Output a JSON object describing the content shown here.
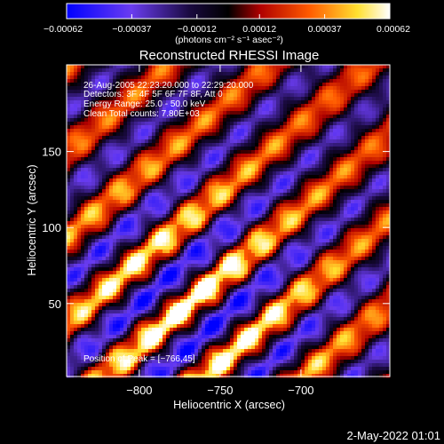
{
  "chart_data": {
    "type": "heatmap",
    "title": "Reconstructed RHESSI Image",
    "xlabel": "Heliocentric X (arcsec)",
    "ylabel": "Heliocentric Y (arcsec)",
    "x_range": [
      -845,
      -645
    ],
    "y_range": [
      2,
      207
    ],
    "x_ticks": [
      -800,
      -750,
      -700
    ],
    "x_tick_labels": [
      "−800",
      "−750",
      "−700"
    ],
    "y_ticks": [
      50,
      100,
      150
    ],
    "y_tick_labels": [
      "50",
      "100",
      "150"
    ],
    "colorbar": {
      "range": [
        -0.00062,
        0.00062
      ],
      "ticks": [
        -0.00062,
        -0.00037,
        -0.00012,
        0.00012,
        0.00037,
        0.00062
      ],
      "tick_labels": [
        "−0.00062",
        "−0.00037",
        "−0.00012",
        "0.00012",
        "0.00037",
        "0.00062"
      ],
      "unit_label": "(photons cm⁻² s⁻¹ asec⁻²)",
      "colors": [
        "#0000ff",
        "#8040e0",
        "#000000",
        "#c00000",
        "#ff6000",
        "#ffff40",
        "#ffffff"
      ]
    },
    "annotations": [
      "26-Aug-2005 22:23:20.000 to 22:29:20.000",
      "Detectors: 3F 4F 5F 6F 7F 8F, Att 0",
      "Energy Range: 25.0 - 50.0 keV",
      "Clean    Total counts: 7.80E+03"
    ],
    "peak_label": "Position of Peak = [−766,45]",
    "peak": [
      -766,
      45
    ],
    "pattern": {
      "stripe_slope": 0.9,
      "stripe_period": 56,
      "peak_x": -766,
      "peak_y": 45
    }
  },
  "footer": {
    "date": "2-May-2022 01:01"
  }
}
